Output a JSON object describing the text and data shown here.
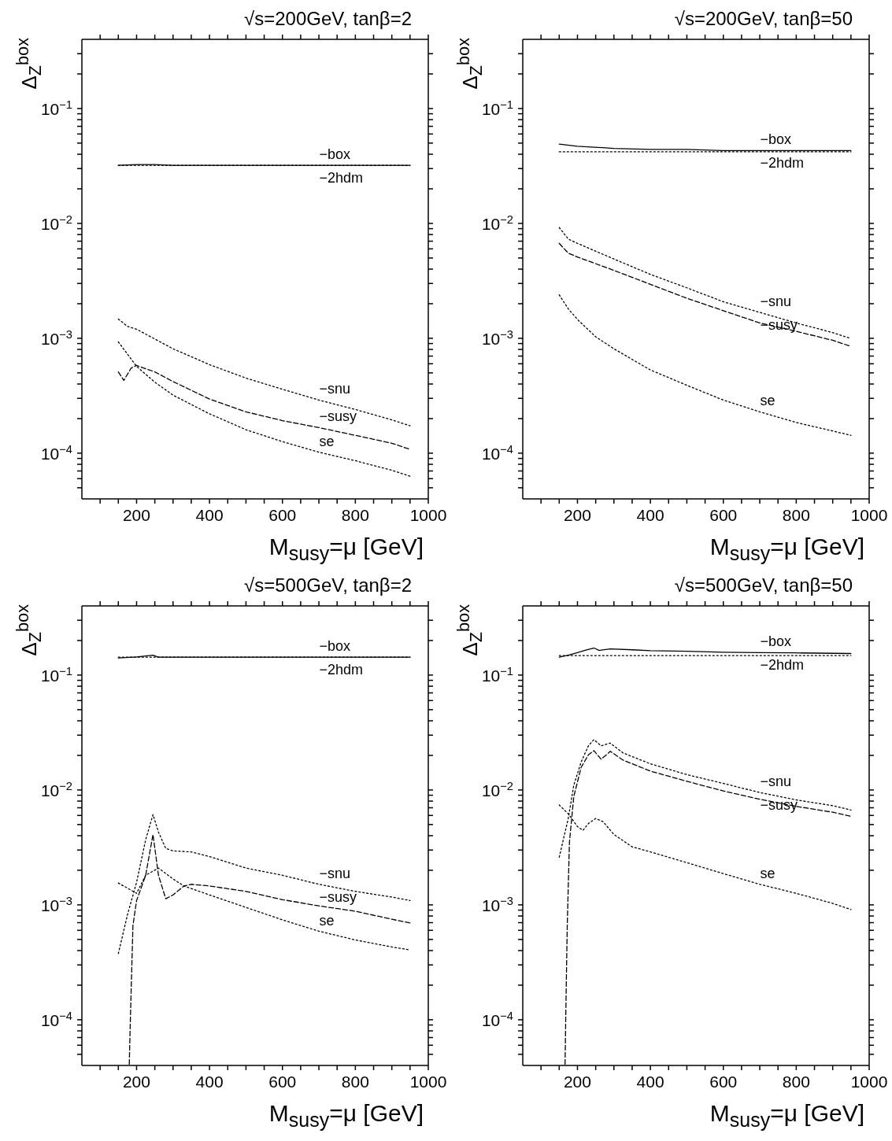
{
  "chart_data": [
    {
      "type": "line",
      "title": "√s=200GeV, tanβ=2",
      "xlabel": "M$_{susy}$=μ [GeV]",
      "ylabel": "Δ$_{Z}$$^{box}$",
      "log": "y",
      "xlim": [
        50,
        1000
      ],
      "xticks": [
        {
          "value": 100,
          "label": null
        },
        {
          "value": 150,
          "label": null
        },
        200,
        {
          "value": 250,
          "label": null
        },
        {
          "value": 300,
          "label": null
        },
        {
          "value": 350,
          "label": null
        },
        400,
        {
          "value": 450,
          "label": null
        },
        {
          "value": 500,
          "label": null
        },
        {
          "value": 550,
          "label": null
        },
        600,
        {
          "value": 650,
          "label": null
        },
        {
          "value": 700,
          "label": null
        },
        {
          "value": 750,
          "label": null
        },
        800,
        {
          "value": 850,
          "label": null
        },
        {
          "value": 900,
          "label": null
        },
        {
          "value": 950,
          "label": null
        },
        1000
      ],
      "ylim": [
        4e-05,
        0.4
      ],
      "yticks": [
        {
          "value": 5e-05,
          "label": null
        },
        {
          "value": 6e-05,
          "label": null
        },
        {
          "value": 7e-05,
          "label": null
        },
        {
          "value": 8e-05,
          "label": null
        },
        {
          "value": 9e-05,
          "label": null
        },
        {
          "value": 0.0001,
          "label": "10$^{−4}$"
        },
        {
          "value": 0.0002,
          "label": null
        },
        {
          "value": 0.0003,
          "label": null
        },
        {
          "value": 0.0004,
          "label": null
        },
        {
          "value": 0.0005,
          "label": null
        },
        {
          "value": 0.0006,
          "label": null
        },
        {
          "value": 0.0007,
          "label": null
        },
        {
          "value": 0.0008,
          "label": null
        },
        {
          "value": 0.0009,
          "label": null
        },
        {
          "value": 0.001,
          "label": "10$^{−3}$"
        },
        {
          "value": 0.002,
          "label": null
        },
        {
          "value": 0.003,
          "label": null
        },
        {
          "value": 0.004,
          "label": null
        },
        {
          "value": 0.005,
          "label": null
        },
        {
          "value": 0.006,
          "label": null
        },
        {
          "value": 0.007,
          "label": null
        },
        {
          "value": 0.008,
          "label": null
        },
        {
          "value": 0.009,
          "label": null
        },
        {
          "value": 0.01,
          "label": "10$^{−2}$"
        },
        {
          "value": 0.02,
          "label": null
        },
        {
          "value": 0.03,
          "label": null
        },
        {
          "value": 0.04,
          "label": null
        },
        {
          "value": 0.05,
          "label": null
        },
        {
          "value": 0.06,
          "label": null
        },
        {
          "value": 0.07,
          "label": null
        },
        {
          "value": 0.08,
          "label": null
        },
        {
          "value": 0.09,
          "label": null
        },
        {
          "value": 0.1,
          "label": "10$^{−1}$"
        },
        {
          "value": 0.2,
          "label": null
        },
        {
          "value": 0.3,
          "label": null
        }
      ],
      "series": [
        {
          "name": "−box",
          "color": "#000000",
          "line_style": "solid",
          "x": [
            150,
            200,
            250,
            300,
            400,
            500,
            600,
            700,
            800,
            950
          ],
          "values": [
            0.032,
            0.0325,
            0.0325,
            0.032,
            0.032,
            0.032,
            0.032,
            0.032,
            0.032,
            0.032
          ]
        },
        {
          "name": "−2hdm",
          "color": "#000000",
          "line_style": "dotted",
          "x": [
            150,
            950
          ],
          "values": [
            0.032,
            0.032
          ]
        },
        {
          "name": "−snu",
          "color": "#000000",
          "line_style": "dotted",
          "x": [
            150,
            175,
            200,
            300,
            400,
            500,
            600,
            700,
            800,
            900,
            950
          ],
          "values": [
            0.00147,
            0.00127,
            0.0012,
            0.00081,
            0.00059,
            0.00045,
            0.00036,
            0.00029,
            0.00024,
            0.000195,
            0.000173
          ]
        },
        {
          "name": "−susy",
          "color": "#000000",
          "line_style": "dashed",
          "x": [
            150,
            165,
            185,
            200,
            250,
            300,
            400,
            500,
            600,
            700,
            800,
            900,
            950
          ],
          "values": [
            0.00051,
            0.00043,
            0.00055,
            0.00058,
            0.00051,
            0.00042,
            0.000296,
            0.000229,
            0.000192,
            0.000167,
            0.000143,
            0.000122,
            0.000108
          ]
        },
        {
          "name": "se",
          "color": "#000000",
          "line_style": "dotted",
          "x": [
            150,
            200,
            250,
            300,
            400,
            500,
            600,
            700,
            800,
            900,
            950
          ],
          "values": [
            0.00093,
            0.00057,
            0.000415,
            0.00032,
            0.00022,
            0.00016,
            0.000126,
            0.000102,
            8.6e-05,
            7.1e-05,
            6.3e-05
          ]
        }
      ]
    },
    {
      "type": "line",
      "title": "√s=200GeV, tanβ=50",
      "xlabel": "M$_{susy}$=μ [GeV]",
      "ylabel": "Δ$_{Z}$$^{box}$",
      "log": "y",
      "xlim": [
        50,
        1000
      ],
      "xticks": [
        {
          "value": 100,
          "label": null
        },
        {
          "value": 150,
          "label": null
        },
        200,
        {
          "value": 250,
          "label": null
        },
        {
          "value": 300,
          "label": null
        },
        {
          "value": 350,
          "label": null
        },
        400,
        {
          "value": 450,
          "label": null
        },
        {
          "value": 500,
          "label": null
        },
        {
          "value": 550,
          "label": null
        },
        600,
        {
          "value": 650,
          "label": null
        },
        {
          "value": 700,
          "label": null
        },
        {
          "value": 750,
          "label": null
        },
        800,
        {
          "value": 850,
          "label": null
        },
        {
          "value": 900,
          "label": null
        },
        {
          "value": 950,
          "label": null
        },
        1000
      ],
      "ylim": [
        4e-05,
        0.4
      ],
      "yticks": [
        {
          "value": 5e-05,
          "label": null
        },
        {
          "value": 6e-05,
          "label": null
        },
        {
          "value": 7e-05,
          "label": null
        },
        {
          "value": 8e-05,
          "label": null
        },
        {
          "value": 9e-05,
          "label": null
        },
        {
          "value": 0.0001,
          "label": "10$^{−4}$"
        },
        {
          "value": 0.0002,
          "label": null
        },
        {
          "value": 0.0003,
          "label": null
        },
        {
          "value": 0.0004,
          "label": null
        },
        {
          "value": 0.0005,
          "label": null
        },
        {
          "value": 0.0006,
          "label": null
        },
        {
          "value": 0.0007,
          "label": null
        },
        {
          "value": 0.0008,
          "label": null
        },
        {
          "value": 0.0009,
          "label": null
        },
        {
          "value": 0.001,
          "label": "10$^{−3}$"
        },
        {
          "value": 0.002,
          "label": null
        },
        {
          "value": 0.003,
          "label": null
        },
        {
          "value": 0.004,
          "label": null
        },
        {
          "value": 0.005,
          "label": null
        },
        {
          "value": 0.006,
          "label": null
        },
        {
          "value": 0.007,
          "label": null
        },
        {
          "value": 0.008,
          "label": null
        },
        {
          "value": 0.009,
          "label": null
        },
        {
          "value": 0.01,
          "label": "10$^{−2}$"
        },
        {
          "value": 0.02,
          "label": null
        },
        {
          "value": 0.03,
          "label": null
        },
        {
          "value": 0.04,
          "label": null
        },
        {
          "value": 0.05,
          "label": null
        },
        {
          "value": 0.06,
          "label": null
        },
        {
          "value": 0.07,
          "label": null
        },
        {
          "value": 0.08,
          "label": null
        },
        {
          "value": 0.09,
          "label": null
        },
        {
          "value": 0.1,
          "label": "10$^{−1}$"
        },
        {
          "value": 0.2,
          "label": null
        },
        {
          "value": 0.3,
          "label": null
        }
      ],
      "series": [
        {
          "name": "−box",
          "color": "#000000",
          "line_style": "solid",
          "x": [
            150,
            200,
            300,
            400,
            500,
            600,
            700,
            800,
            950
          ],
          "values": [
            0.049,
            0.047,
            0.045,
            0.044,
            0.044,
            0.043,
            0.043,
            0.043,
            0.043
          ]
        },
        {
          "name": "−2hdm",
          "color": "#000000",
          "line_style": "dotted",
          "x": [
            150,
            950
          ],
          "values": [
            0.042,
            0.042
          ]
        },
        {
          "name": "−snu",
          "color": "#000000",
          "line_style": "dotted",
          "x": [
            150,
            175,
            200,
            300,
            400,
            500,
            600,
            700,
            800,
            900,
            950
          ],
          "values": [
            0.0092,
            0.0073,
            0.0067,
            0.0049,
            0.0036,
            0.00275,
            0.00208,
            0.00168,
            0.00136,
            0.00112,
            0.000995
          ]
        },
        {
          "name": "−susy",
          "color": "#000000",
          "line_style": "dashed",
          "x": [
            150,
            175,
            200,
            300,
            400,
            500,
            600,
            700,
            800,
            900,
            950
          ],
          "values": [
            0.0067,
            0.0055,
            0.0051,
            0.0039,
            0.00295,
            0.00223,
            0.00174,
            0.00136,
            0.00115,
            0.00096,
            0.00085
          ]
        },
        {
          "name": "se",
          "color": "#000000",
          "line_style": "dotted",
          "x": [
            150,
            175,
            200,
            250,
            300,
            400,
            500,
            600,
            700,
            800,
            900,
            950
          ],
          "values": [
            0.00239,
            0.0018,
            0.00146,
            0.00103,
            0.00081,
            0.00053,
            0.00039,
            0.00029,
            0.000229,
            0.000185,
            0.000156,
            0.000143
          ]
        }
      ]
    },
    {
      "type": "line",
      "title": "√s=500GeV, tanβ=2",
      "xlabel": "M$_{susy}$=μ [GeV]",
      "ylabel": "Δ$_{Z}$$^{box}$",
      "log": "y",
      "xlim": [
        50,
        1000
      ],
      "xticks": [
        {
          "value": 100,
          "label": null
        },
        {
          "value": 150,
          "label": null
        },
        200,
        {
          "value": 250,
          "label": null
        },
        {
          "value": 300,
          "label": null
        },
        {
          "value": 350,
          "label": null
        },
        400,
        {
          "value": 450,
          "label": null
        },
        {
          "value": 500,
          "label": null
        },
        {
          "value": 550,
          "label": null
        },
        600,
        {
          "value": 650,
          "label": null
        },
        {
          "value": 700,
          "label": null
        },
        {
          "value": 750,
          "label": null
        },
        800,
        {
          "value": 850,
          "label": null
        },
        {
          "value": 900,
          "label": null
        },
        {
          "value": 950,
          "label": null
        },
        1000
      ],
      "ylim": [
        4e-05,
        0.4
      ],
      "yticks": [
        {
          "value": 5e-05,
          "label": null
        },
        {
          "value": 6e-05,
          "label": null
        },
        {
          "value": 7e-05,
          "label": null
        },
        {
          "value": 8e-05,
          "label": null
        },
        {
          "value": 9e-05,
          "label": null
        },
        {
          "value": 0.0001,
          "label": "10$^{−4}$"
        },
        {
          "value": 0.0002,
          "label": null
        },
        {
          "value": 0.0003,
          "label": null
        },
        {
          "value": 0.0004,
          "label": null
        },
        {
          "value": 0.0005,
          "label": null
        },
        {
          "value": 0.0006,
          "label": null
        },
        {
          "value": 0.0007,
          "label": null
        },
        {
          "value": 0.0008,
          "label": null
        },
        {
          "value": 0.0009,
          "label": null
        },
        {
          "value": 0.001,
          "label": "10$^{−3}$"
        },
        {
          "value": 0.002,
          "label": null
        },
        {
          "value": 0.003,
          "label": null
        },
        {
          "value": 0.004,
          "label": null
        },
        {
          "value": 0.005,
          "label": null
        },
        {
          "value": 0.006,
          "label": null
        },
        {
          "value": 0.007,
          "label": null
        },
        {
          "value": 0.008,
          "label": null
        },
        {
          "value": 0.009,
          "label": null
        },
        {
          "value": 0.01,
          "label": "10$^{−2}$"
        },
        {
          "value": 0.02,
          "label": null
        },
        {
          "value": 0.03,
          "label": null
        },
        {
          "value": 0.04,
          "label": null
        },
        {
          "value": 0.05,
          "label": null
        },
        {
          "value": 0.06,
          "label": null
        },
        {
          "value": 0.07,
          "label": null
        },
        {
          "value": 0.08,
          "label": null
        },
        {
          "value": 0.09,
          "label": null
        },
        {
          "value": 0.1,
          "label": "10$^{−1}$"
        },
        {
          "value": 0.2,
          "label": null
        },
        {
          "value": 0.3,
          "label": null
        }
      ],
      "series": [
        {
          "name": "−box",
          "color": "#000000",
          "line_style": "solid",
          "x": [
            150,
            200,
            245,
            260,
            300,
            400,
            500,
            600,
            700,
            800,
            950
          ],
          "values": [
            0.141,
            0.144,
            0.149,
            0.143,
            0.143,
            0.143,
            0.143,
            0.143,
            0.143,
            0.143,
            0.143
          ]
        },
        {
          "name": "−2hdm",
          "color": "#000000",
          "line_style": "dotted",
          "x": [
            150,
            950
          ],
          "values": [
            0.143,
            0.143
          ]
        },
        {
          "name": "−snu",
          "color": "#000000",
          "line_style": "dotted",
          "x": [
            150,
            175,
            200,
            225,
            245,
            260,
            280,
            300,
            350,
            400,
            500,
            600,
            700,
            800,
            900,
            950
          ],
          "values": [
            0.000377,
            0.00082,
            0.00157,
            0.0037,
            0.0061,
            0.0043,
            0.0031,
            0.00295,
            0.00289,
            0.00263,
            0.00209,
            0.00181,
            0.00151,
            0.00131,
            0.00117,
            0.00109
          ]
        },
        {
          "name": "−susy",
          "color": "#000000",
          "line_style": "dashed",
          "x": [
            180,
            182,
            190,
            200,
            225,
            245,
            260,
            280,
            300,
            330,
            350,
            400,
            500,
            600,
            700,
            800,
            900,
            950
          ],
          "values": [
            4.1e-05,
            7.6e-05,
            0.00066,
            0.00109,
            0.00181,
            0.0041,
            0.00181,
            0.00113,
            0.00122,
            0.00146,
            0.00151,
            0.00146,
            0.00131,
            0.00111,
            0.00098,
            0.00088,
            0.00075,
            0.000695
          ]
        },
        {
          "name": "se",
          "color": "#000000",
          "line_style": "dotted",
          "x": [
            150,
            200,
            225,
            260,
            300,
            330,
            400,
            500,
            600,
            700,
            800,
            900,
            950
          ],
          "values": [
            0.00155,
            0.00126,
            0.00181,
            0.00209,
            0.00168,
            0.00146,
            0.00122,
            0.00095,
            0.00074,
            0.00059,
            0.000495,
            0.00043,
            0.000405
          ]
        }
      ]
    },
    {
      "type": "line",
      "title": "√s=500GeV, tanβ=50",
      "xlabel": "M$_{susy}$=μ [GeV]",
      "ylabel": "Δ$_{Z}$$^{box}$",
      "log": "y",
      "xlim": [
        50,
        1000
      ],
      "xticks": [
        {
          "value": 100,
          "label": null
        },
        {
          "value": 150,
          "label": null
        },
        200,
        {
          "value": 250,
          "label": null
        },
        {
          "value": 300,
          "label": null
        },
        {
          "value": 350,
          "label": null
        },
        400,
        {
          "value": 450,
          "label": null
        },
        {
          "value": 500,
          "label": null
        },
        {
          "value": 550,
          "label": null
        },
        600,
        {
          "value": 650,
          "label": null
        },
        {
          "value": 700,
          "label": null
        },
        {
          "value": 750,
          "label": null
        },
        800,
        {
          "value": 850,
          "label": null
        },
        {
          "value": 900,
          "label": null
        },
        {
          "value": 950,
          "label": null
        },
        1000
      ],
      "ylim": [
        4e-05,
        0.4
      ],
      "yticks": [
        {
          "value": 5e-05,
          "label": null
        },
        {
          "value": 6e-05,
          "label": null
        },
        {
          "value": 7e-05,
          "label": null
        },
        {
          "value": 8e-05,
          "label": null
        },
        {
          "value": 9e-05,
          "label": null
        },
        {
          "value": 0.0001,
          "label": "10$^{−4}$"
        },
        {
          "value": 0.0002,
          "label": null
        },
        {
          "value": 0.0003,
          "label": null
        },
        {
          "value": 0.0004,
          "label": null
        },
        {
          "value": 0.0005,
          "label": null
        },
        {
          "value": 0.0006,
          "label": null
        },
        {
          "value": 0.0007,
          "label": null
        },
        {
          "value": 0.0008,
          "label": null
        },
        {
          "value": 0.0009,
          "label": null
        },
        {
          "value": 0.001,
          "label": "10$^{−3}$"
        },
        {
          "value": 0.002,
          "label": null
        },
        {
          "value": 0.003,
          "label": null
        },
        {
          "value": 0.004,
          "label": null
        },
        {
          "value": 0.005,
          "label": null
        },
        {
          "value": 0.006,
          "label": null
        },
        {
          "value": 0.007,
          "label": null
        },
        {
          "value": 0.008,
          "label": null
        },
        {
          "value": 0.009,
          "label": null
        },
        {
          "value": 0.01,
          "label": "10$^{−2}$"
        },
        {
          "value": 0.02,
          "label": null
        },
        {
          "value": 0.03,
          "label": null
        },
        {
          "value": 0.04,
          "label": null
        },
        {
          "value": 0.05,
          "label": null
        },
        {
          "value": 0.06,
          "label": null
        },
        {
          "value": 0.07,
          "label": null
        },
        {
          "value": 0.08,
          "label": null
        },
        {
          "value": 0.09,
          "label": null
        },
        {
          "value": 0.1,
          "label": "10$^{−1}$"
        },
        {
          "value": 0.2,
          "label": null
        },
        {
          "value": 0.3,
          "label": null
        }
      ],
      "series": [
        {
          "name": "−box",
          "color": "#000000",
          "line_style": "solid",
          "x": [
            150,
            175,
            200,
            225,
            245,
            260,
            290,
            350,
            400,
            500,
            600,
            700,
            800,
            950
          ],
          "values": [
            0.143,
            0.149,
            0.157,
            0.166,
            0.172,
            0.164,
            0.169,
            0.166,
            0.163,
            0.161,
            0.158,
            0.157,
            0.156,
            0.154
          ]
        },
        {
          "name": "−2hdm",
          "color": "#000000",
          "line_style": "dotted",
          "x": [
            150,
            950
          ],
          "values": [
            0.148,
            0.148
          ]
        },
        {
          "name": "−snu",
          "color": "#000000",
          "line_style": "dotted",
          "x": [
            150,
            175,
            190,
            210,
            230,
            245,
            265,
            290,
            325,
            400,
            500,
            600,
            700,
            800,
            900,
            950
          ],
          "values": [
            0.0026,
            0.0057,
            0.011,
            0.0175,
            0.0242,
            0.0274,
            0.0242,
            0.0256,
            0.021,
            0.0169,
            0.0136,
            0.0114,
            0.0095,
            0.0082,
            0.0073,
            0.0067
          ]
        },
        {
          "name": "−susy",
          "color": "#000000",
          "line_style": "dashed",
          "x": [
            166,
            168,
            172,
            178,
            190,
            210,
            230,
            245,
            265,
            290,
            325,
            400,
            500,
            600,
            700,
            800,
            900,
            950
          ],
          "values": [
            4.1e-05,
            0.00011,
            0.00066,
            0.0035,
            0.0088,
            0.0157,
            0.0202,
            0.022,
            0.0185,
            0.0217,
            0.0182,
            0.0146,
            0.0119,
            0.0098,
            0.0083,
            0.0072,
            0.0064,
            0.0059
          ]
        },
        {
          "name": "se",
          "color": "#000000",
          "line_style": "dotted",
          "x": [
            150,
            175,
            200,
            215,
            230,
            250,
            270,
            300,
            350,
            400,
            500,
            600,
            700,
            800,
            900,
            950
          ],
          "values": [
            0.0074,
            0.0062,
            0.0048,
            0.00445,
            0.0051,
            0.00565,
            0.0053,
            0.0041,
            0.0032,
            0.00289,
            0.00233,
            0.00187,
            0.00151,
            0.00126,
            0.00103,
            0.00091
          ]
        }
      ]
    }
  ]
}
